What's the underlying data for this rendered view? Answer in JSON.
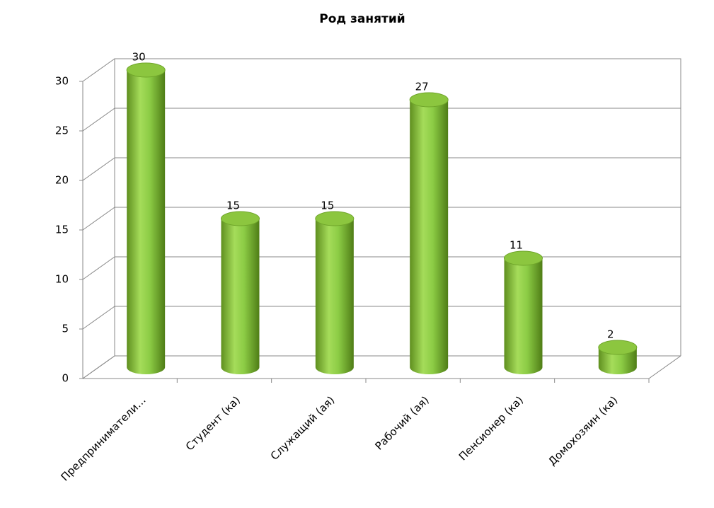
{
  "chart_data": {
    "type": "bar",
    "title": "Род занятий",
    "categories": [
      "Предприниматели…",
      "Студент (ка)",
      "Служащий (ая)",
      "Рабочий (ая)",
      "Пенсионер (ка)",
      "Домохозяин (ка)"
    ],
    "values": [
      30,
      15,
      15,
      27,
      11,
      2
    ],
    "color": "#8cc63f",
    "ylim": [
      0,
      30
    ],
    "yticks": [
      0,
      5,
      10,
      15,
      20,
      25,
      30
    ],
    "grid": true
  }
}
